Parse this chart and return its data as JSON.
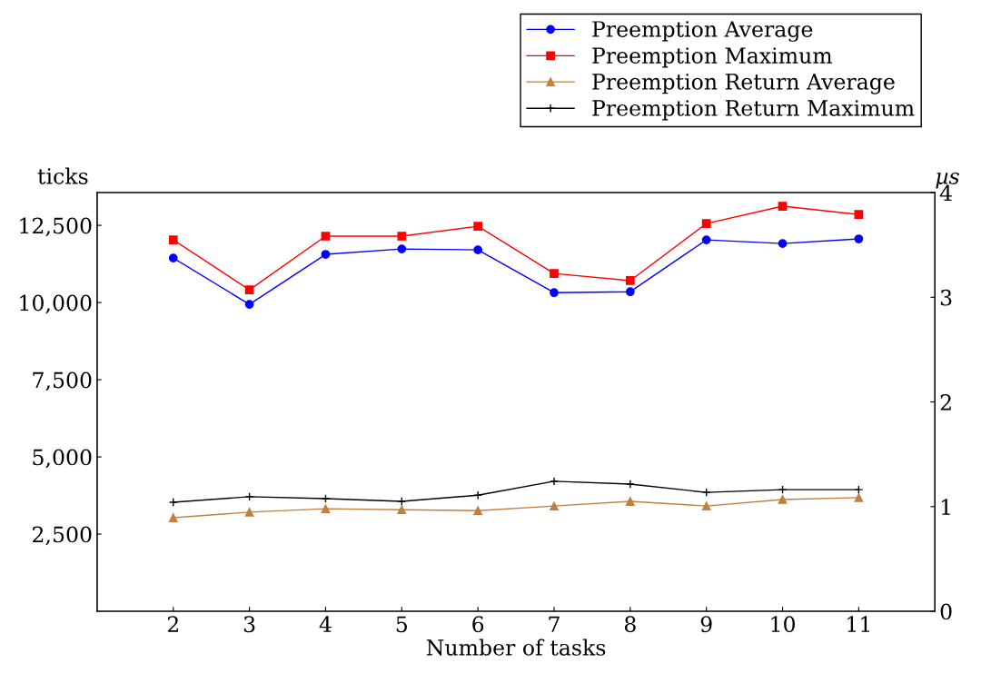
{
  "chart_data": {
    "type": "line",
    "xlabel": "Number of tasks",
    "ylabel": "ticks",
    "y2label": "µs",
    "x": [
      2,
      3,
      4,
      5,
      6,
      7,
      8,
      9,
      10,
      11
    ],
    "series": [
      {
        "name": "Preemption Average",
        "color": "#0000ff",
        "marker": "circle",
        "values": [
          11440,
          9940,
          11560,
          11735,
          11705,
          10320,
          10350,
          12030,
          11910,
          12060
        ]
      },
      {
        "name": "Preemption Maximum",
        "color": "#ff0000",
        "marker": "square",
        "values": [
          12030,
          10410,
          12150,
          12150,
          12470,
          10940,
          10710,
          12560,
          13120,
          12850
        ]
      },
      {
        "name": "Preemption Return Average",
        "color": "#bf8040",
        "marker": "triangle",
        "values": [
          3030,
          3210,
          3320,
          3290,
          3260,
          3410,
          3560,
          3410,
          3620,
          3680
        ]
      },
      {
        "name": "Preemption Return Maximum",
        "color": "#000000",
        "marker": "cross",
        "values": [
          3530,
          3710,
          3650,
          3560,
          3760,
          4210,
          4120,
          3850,
          3940,
          3940
        ]
      }
    ],
    "xlim": [
      1,
      12
    ],
    "xticks": [
      2,
      3,
      4,
      5,
      6,
      7,
      8,
      9,
      10,
      11
    ],
    "ylim": [
      0,
      13560
    ],
    "yticks": [
      {
        "value": 2500,
        "label": "2,500"
      },
      {
        "value": 5000,
        "label": "5,000"
      },
      {
        "value": 7500,
        "label": "7,500"
      },
      {
        "value": 10000,
        "label": "10,000"
      },
      {
        "value": 12500,
        "label": "12,500"
      }
    ],
    "y2lim": [
      0,
      4
    ],
    "y2ticks": [
      0,
      1,
      2,
      3,
      4
    ],
    "grid": false,
    "legend": "top right",
    "line_style": "solid"
  }
}
